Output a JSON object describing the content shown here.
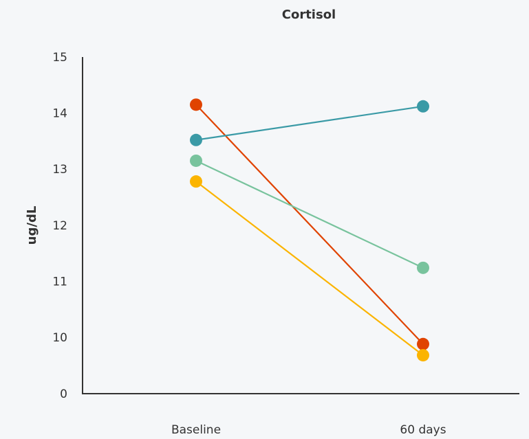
{
  "chart_data": {
    "type": "line",
    "title": "Cortisol",
    "xlabel": "",
    "ylabel": "ug/dL",
    "categories": [
      "Baseline",
      "60 days"
    ],
    "y_ticks": [
      "0",
      "10",
      "11",
      "12",
      "13",
      "14",
      "15"
    ],
    "axis_break": "0 then 10-15",
    "ylim": [
      9.0,
      15
    ],
    "grid": false,
    "series": [
      {
        "color": "#e04300",
        "values": [
          14.15,
          9.88
        ]
      },
      {
        "color": "#3a9aa6",
        "values": [
          13.52,
          14.12
        ]
      },
      {
        "color": "#78c39d",
        "values": [
          13.15,
          11.24
        ]
      },
      {
        "color": "#fbb400",
        "values": [
          12.78,
          9.68
        ]
      }
    ]
  }
}
